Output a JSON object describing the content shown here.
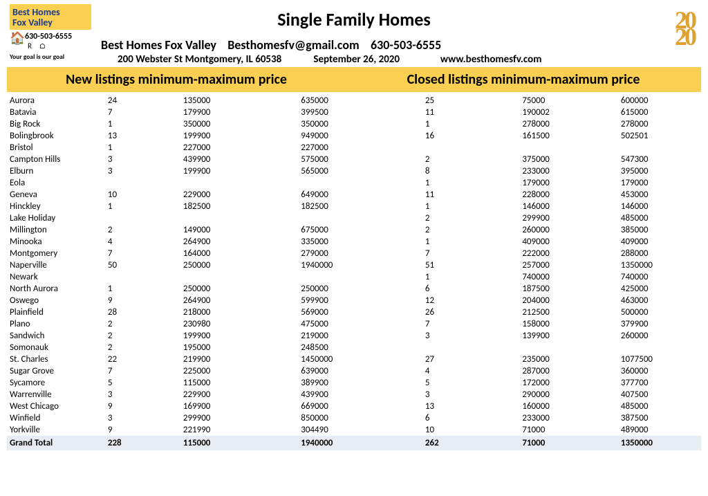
{
  "logo": {
    "line1": "Best Homes",
    "line2": "Fox Valley",
    "house_glyph": "🏠",
    "phone": "630-503-6555",
    "cert_glyph": "R ⌂",
    "tagline": "Your goal is our goal"
  },
  "year_logo": "20",
  "title": "Single Family Homes",
  "header": {
    "company": "Best Homes Fox Valley",
    "email": "Besthomesfv@gmail.com",
    "phone": "630-503-6555",
    "address": "200 Webster St Montgomery, IL 60538",
    "date": "September 26, 2020",
    "website": "www.besthomesfv.com"
  },
  "band": {
    "left": "New listings minimum-maximum price",
    "right": "Closed listings minimum-maximum price"
  },
  "table": {
    "rows": [
      [
        "Aurora",
        "24",
        "135000",
        "635000",
        "25",
        "75000",
        "600000"
      ],
      [
        "Batavia",
        "7",
        "179900",
        "399500",
        "11",
        "190002",
        "615000"
      ],
      [
        "Big Rock",
        "1",
        "350000",
        "350000",
        "1",
        "278000",
        "278000"
      ],
      [
        "Bolingbrook",
        "13",
        "199900",
        "949000",
        "16",
        "161500",
        "502501"
      ],
      [
        "Bristol",
        "1",
        "227000",
        "227000",
        "",
        "",
        ""
      ],
      [
        "Campton Hills",
        "3",
        "439900",
        "575000",
        "2",
        "375000",
        "547300"
      ],
      [
        "Elburn",
        "3",
        "199900",
        "565000",
        "8",
        "233000",
        "395000"
      ],
      [
        "Eola",
        "",
        "",
        "",
        "1",
        "179000",
        "179000"
      ],
      [
        "Geneva",
        "10",
        "229000",
        "649000",
        "11",
        "228000",
        "453000"
      ],
      [
        "Hinckley",
        "1",
        "182500",
        "182500",
        "1",
        "146000",
        "146000"
      ],
      [
        "Lake Holiday",
        "",
        "",
        "",
        "2",
        "299900",
        "485000"
      ],
      [
        "Millington",
        "2",
        "149000",
        "675000",
        "2",
        "260000",
        "385000"
      ],
      [
        "Minooka",
        "4",
        "264900",
        "335000",
        "1",
        "409000",
        "409000"
      ],
      [
        "Montgomery",
        "7",
        "164000",
        "279000",
        "7",
        "222000",
        "288000"
      ],
      [
        "Naperville",
        "50",
        "250000",
        "1940000",
        "51",
        "257000",
        "1350000"
      ],
      [
        "Newark",
        "",
        "",
        "",
        "1",
        "740000",
        "740000"
      ],
      [
        "North Aurora",
        "1",
        "250000",
        "250000",
        "6",
        "187500",
        "425000"
      ],
      [
        "Oswego",
        "9",
        "264900",
        "599900",
        "12",
        "204000",
        "463000"
      ],
      [
        "Plainfield",
        "28",
        "218000",
        "569000",
        "26",
        "212500",
        "500000"
      ],
      [
        "Plano",
        "2",
        "230980",
        "475000",
        "7",
        "158000",
        "379900"
      ],
      [
        "Sandwich",
        "2",
        "199900",
        "219000",
        "3",
        "139900",
        "260000"
      ],
      [
        "Somonauk",
        "2",
        "195000",
        "248500",
        "",
        "",
        ""
      ],
      [
        "St. Charles",
        "22",
        "219900",
        "1450000",
        "27",
        "235000",
        "1077500"
      ],
      [
        "Sugar Grove",
        "7",
        "225000",
        "639000",
        "4",
        "287000",
        "360000"
      ],
      [
        "Sycamore",
        "5",
        "115000",
        "389900",
        "5",
        "172000",
        "377700"
      ],
      [
        "Warrenville",
        "3",
        "229900",
        "439900",
        "3",
        "290000",
        "407500"
      ],
      [
        "West Chicago",
        "9",
        "169900",
        "669000",
        "13",
        "160000",
        "485000"
      ],
      [
        "Winfield",
        "3",
        "299900",
        "850000",
        "6",
        "233000",
        "387500"
      ],
      [
        "Yorkville",
        "9",
        "221990",
        "304490",
        "10",
        "71000",
        "489000"
      ]
    ],
    "total": [
      "Grand Total",
      "228",
      "115000",
      "1940000",
      "262",
      "71000",
      "1350000"
    ]
  },
  "colors": {
    "band_bg": "#fbd052",
    "logo_text": "#1a3a8a",
    "year_logo": "#e0a030",
    "total_bg": "#e8ecf4",
    "page_bg": "#ffffff"
  },
  "fonts": {
    "title_size_pt": 20,
    "band_size_pt": 15,
    "header_size_pt": 14,
    "body_size_pt": 10
  }
}
